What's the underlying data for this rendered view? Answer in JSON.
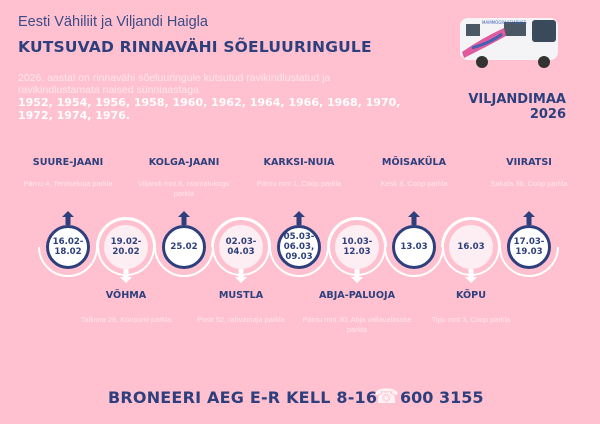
{
  "header": {
    "organizers": "Eesti Vähiliit ja Viljandi Haigla",
    "title": "KUTSUVAD RINNAVÄHI SÕELUURINGULE",
    "intro": "2026. aastal on rinnavähi sõeluuringule kutsutud ravikindlustatud ja ravikindlustamata naised sünniaastaga",
    "years": "1952, 1954, 1956, 1958, 1960, 1962, 1964, 1966, 1968, 1970, 1972, 1974, 1976."
  },
  "region": {
    "name": "VILJANDIMAA",
    "year": "2026"
  },
  "bus_image": {
    "lettering": "MAMMOGRAAFIABUSS"
  },
  "stops": [
    {
      "name": "SUURE-JAANI",
      "address": "Pärnu 4, Tervisekoja parkla",
      "dates": "16.02-\n18.02",
      "position": "top"
    },
    {
      "name": "VÕHMA",
      "address": "Tallinna 26, Konsumi parkla",
      "dates": "19.02-\n20.02",
      "position": "bottom"
    },
    {
      "name": "KOLGA-JAANI",
      "address": "Viljandi mnt.6, raamatukogu parkla",
      "dates": "25.02",
      "position": "top"
    },
    {
      "name": "MUSTLA",
      "address": "Posti 52, rahvamaja parkla",
      "dates": "02.03-\n04.03",
      "position": "bottom"
    },
    {
      "name": "KARKSI-NUIA",
      "address": "Pärnu mnt 1, Coop parkla",
      "dates": "05.03-\n06.03,\n09.03",
      "position": "top"
    },
    {
      "name": "ABJA-PALUOJA",
      "address": "Pärnu mnt 30, Abja vallavalitsuse parkla",
      "dates": "10.03-\n12.03",
      "position": "bottom"
    },
    {
      "name": "MÕISAKÜLA",
      "address": "Kesk 8, Coop parkla",
      "dates": "13.03",
      "position": "top"
    },
    {
      "name": "KÕPU",
      "address": "Tipu mnt 3, Coop parkla",
      "dates": "16.03",
      "position": "bottom"
    },
    {
      "name": "VIIRATSI",
      "address": "Sakala 3b, Coop parkla",
      "dates": "17.03-\n19.03",
      "position": "top"
    }
  ],
  "footer": {
    "booking": "BRONEERI AEG E-R KELL 8-16",
    "phone_icon": "telephone-icon",
    "phone": "600 3155"
  },
  "colors": {
    "background": "#FFC1D0",
    "navy": "#2D3F7C",
    "light": "#FDEEF3"
  }
}
